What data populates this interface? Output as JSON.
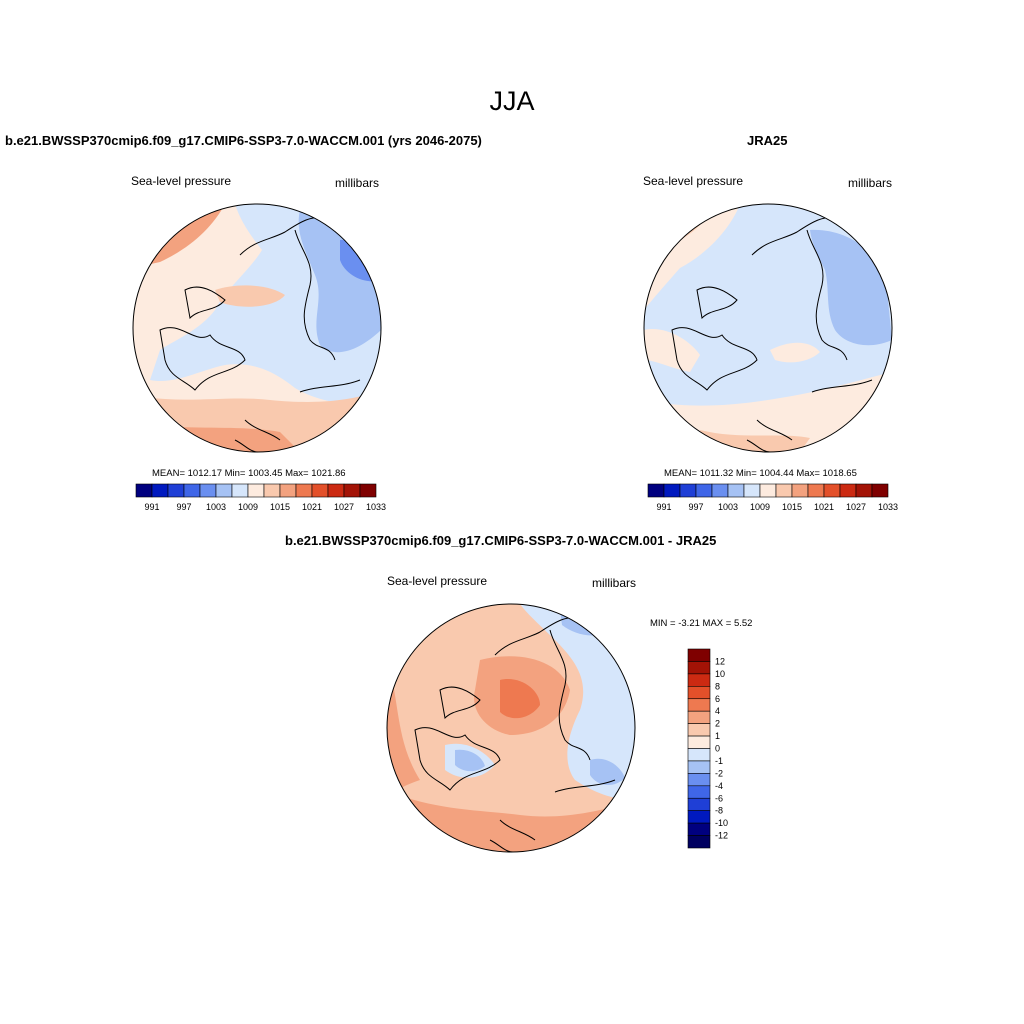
{
  "title": "JJA",
  "variable": "Sea-level pressure",
  "units": "millibars",
  "panels": {
    "model": {
      "title": "b.e21.BWSSP370cmip6.f09_g17.CMIP6-SSP3-7.0-WACCM.001 (yrs 2046-2075)",
      "stats": "MEAN= 1012.17  Min= 1003.45  Max= 1021.86",
      "mean": 1012.17,
      "min": 1003.45,
      "max": 1021.86
    },
    "obs": {
      "title": "JRA25",
      "stats": "MEAN= 1011.32  Min= 1004.44  Max= 1018.65",
      "mean": 1011.32,
      "min": 1004.44,
      "max": 1018.65
    },
    "diff": {
      "title": "b.e21.BWSSP370cmip6.f09_g17.CMIP6-SSP3-7.0-WACCM.001 - JRA25",
      "stats": "MIN =  -3.21 MAX =   5.52",
      "min": -3.21,
      "max": 5.52
    }
  },
  "colorbar_abs": {
    "labels": [
      "991",
      "997",
      "1003",
      "1009",
      "1015",
      "1021",
      "1027",
      "1033"
    ],
    "colors": [
      "#00007f",
      "#0019bf",
      "#1f3fd6",
      "#3f66e8",
      "#6a8ff0",
      "#a6c2f4",
      "#d6e6fb",
      "#fdebdf",
      "#f9c9ae",
      "#f3a27f",
      "#ee7950",
      "#e3502a",
      "#cc2a12",
      "#a31306",
      "#7f0000"
    ]
  },
  "colorbar_diff": {
    "labels": [
      "12",
      "10",
      "8",
      "6",
      "4",
      "2",
      "1",
      "0",
      "-1",
      "-2",
      "-4",
      "-6",
      "-8",
      "-10",
      "-12"
    ],
    "colors": [
      "#7f0000",
      "#a31306",
      "#cc2a12",
      "#e3502a",
      "#ee7950",
      "#f3a27f",
      "#f9c9ae",
      "#fdebdf",
      "#d6e6fb",
      "#a6c2f4",
      "#6a8ff0",
      "#3f66e8",
      "#1f3fd6",
      "#0019bf",
      "#00007f",
      "#000060"
    ]
  }
}
